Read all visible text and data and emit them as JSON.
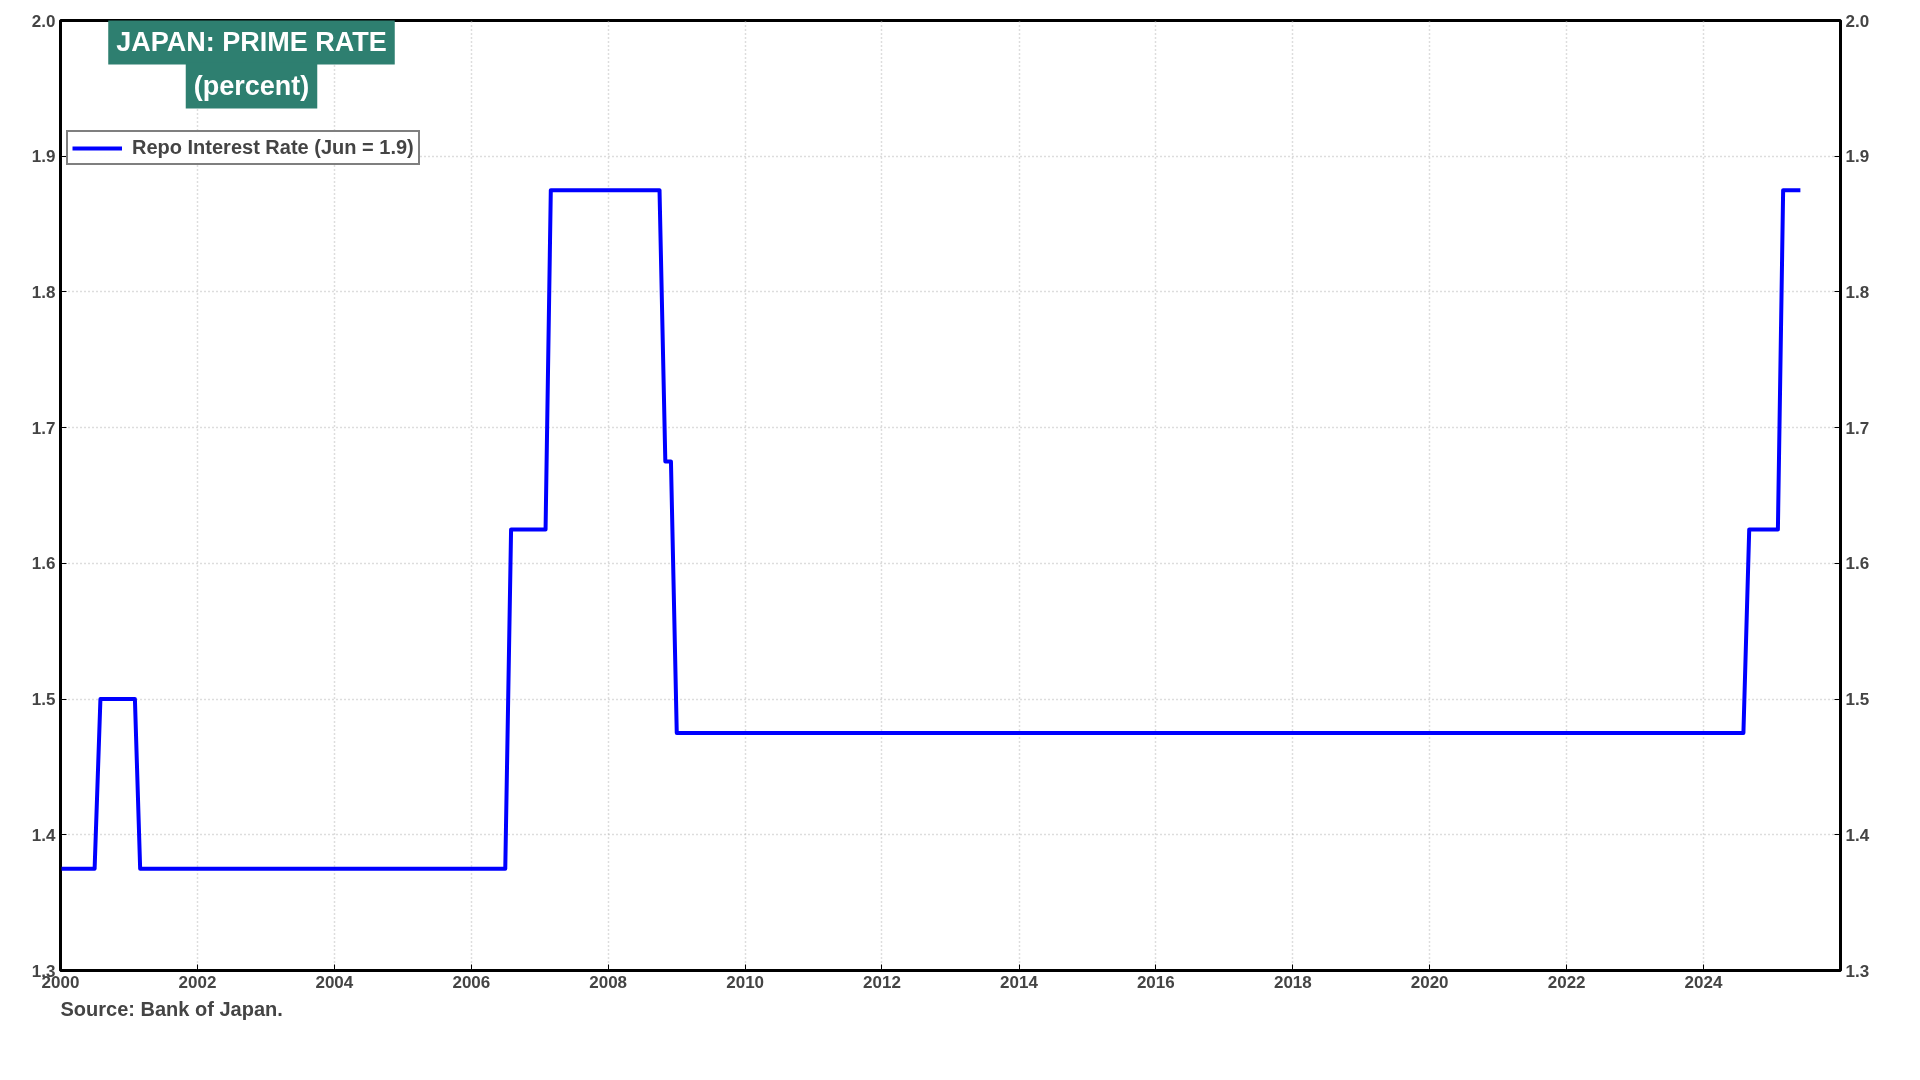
{
  "chart_data": {
    "type": "line",
    "title": "JAPAN: PRIME RATE",
    "subtitle": "(percent)",
    "x": [
      "2000-01",
      "2000-07",
      "2000-08",
      "2001-02",
      "2001-03",
      "2006-07",
      "2006-08",
      "2007-02",
      "2007-03",
      "2008-10",
      "2008-11",
      "2008-12",
      "2009-01",
      "2024-08",
      "2024-09",
      "2025-02",
      "2025-03",
      "2025-06"
    ],
    "series": [
      {
        "name": "Repo Interest Rate (Jun = 1.9)",
        "color": "#0000ff",
        "values": [
          1.375,
          1.375,
          1.5,
          1.5,
          1.375,
          1.375,
          1.625,
          1.625,
          1.875,
          1.875,
          1.675,
          1.675,
          1.475,
          1.475,
          1.625,
          1.625,
          1.875,
          1.875
        ]
      }
    ],
    "xlim": [
      "2000-01-01",
      "2026-01-01"
    ],
    "xticks": [
      "2000",
      "2002",
      "2004",
      "2006",
      "2008",
      "2010",
      "2012",
      "2014",
      "2016",
      "2018",
      "2020",
      "2022",
      "2024"
    ],
    "ylim": [
      1.3,
      2.0
    ],
    "yticks": [
      1.3,
      1.4,
      1.5,
      1.6,
      1.7,
      1.8,
      1.9,
      {
        "value": 2.0,
        "label": "2.0"
      }
    ],
    "y2lim": [
      1.3,
      2.0
    ],
    "y2ticks": [
      1.3,
      1.4,
      1.5,
      1.6,
      1.7,
      1.8,
      1.9,
      {
        "value": 2.0,
        "label": "2.0"
      }
    ],
    "grid": true,
    "legend": "top left",
    "line_style": "solid",
    "marker": "none",
    "annotations": [
      "Source: Bank of Japan."
    ]
  }
}
